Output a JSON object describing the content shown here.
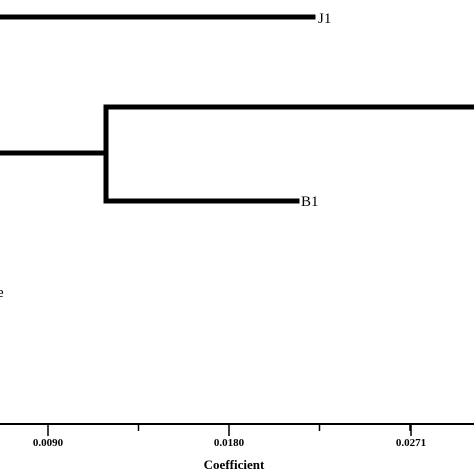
{
  "diagram": {
    "type": "dendrogram",
    "leaves": [
      {
        "label": "J1"
      },
      {
        "label": "B1"
      }
    ],
    "partial_leaf_text": "e",
    "axis": {
      "title": "Coefficient",
      "ticks": [
        {
          "value": 0.009,
          "label": "0.0090"
        },
        {
          "value": 0.018,
          "label": "0.0180"
        },
        {
          "value": 0.0271,
          "label": "0.0271"
        }
      ]
    }
  },
  "colors": {
    "line": "#000000",
    "background": "#ffffff"
  }
}
